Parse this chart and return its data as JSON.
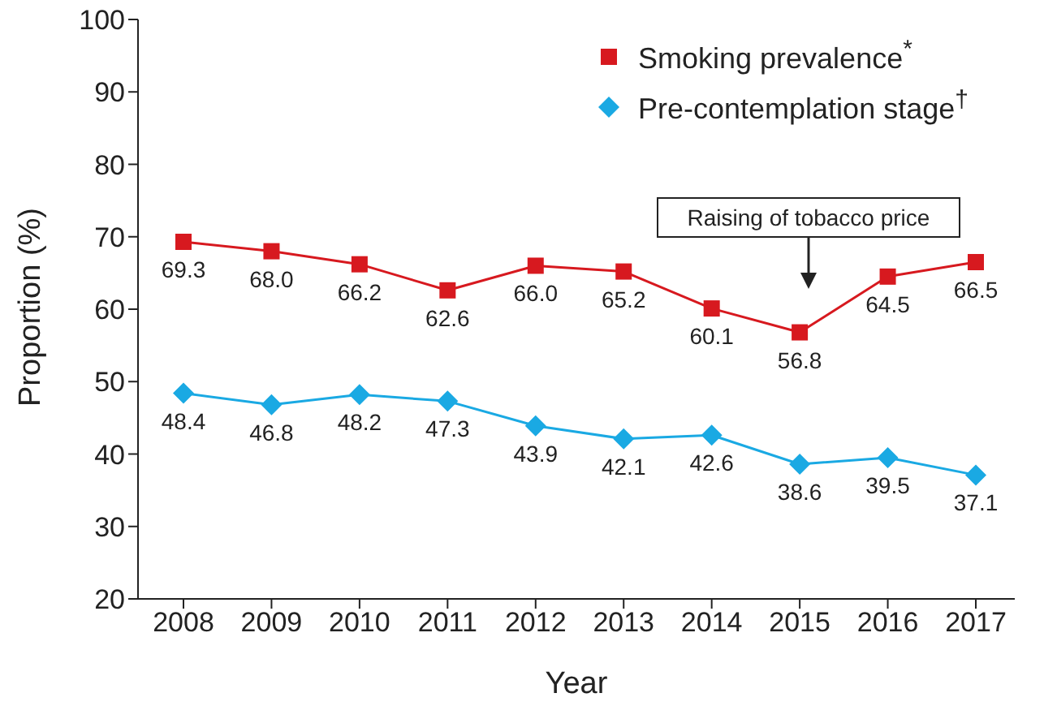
{
  "chart_data": {
    "type": "line",
    "xlabel": "Year",
    "ylabel": "Proportion (%)",
    "categories": [
      "2008",
      "2009",
      "2010",
      "2011",
      "2012",
      "2013",
      "2014",
      "2015",
      "2016",
      "2017"
    ],
    "series": [
      {
        "name": "Smoking prevalence$^{*}$",
        "color": "#d7191f",
        "marker": "square",
        "values": [
          69.3,
          68.0,
          66.2,
          62.6,
          66.0,
          65.2,
          60.1,
          56.8,
          64.5,
          66.5
        ],
        "value_labels": [
          "69.3",
          "68.0",
          "66.2",
          "62.6",
          "66.0",
          "65.2",
          "60.1",
          "56.8",
          "64.5",
          "66.5"
        ]
      },
      {
        "name": "Pre-contemplation stage$^{†}$",
        "color": "#1aa9e3",
        "marker": "diamond",
        "values": [
          48.4,
          46.8,
          48.2,
          47.3,
          43.9,
          42.1,
          42.6,
          38.6,
          39.5,
          37.1
        ],
        "value_labels": [
          "48.4",
          "46.8",
          "48.2",
          "47.3",
          "43.9",
          "42.1",
          "42.6",
          "38.6",
          "39.5",
          "37.1"
        ]
      }
    ],
    "ylim": [
      20,
      100
    ],
    "yticks": [
      20,
      30,
      40,
      50,
      60,
      70,
      80,
      90,
      100
    ],
    "grid": false,
    "legend": "top right",
    "annotations": [
      "Raising of tobacco price"
    ]
  }
}
